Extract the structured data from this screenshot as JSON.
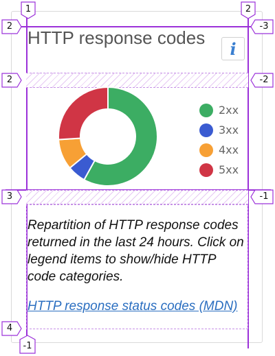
{
  "card": {
    "title": "HTTP response codes",
    "info_icon": "info-icon",
    "description": "Repartition of HTTP response codes returned in the last 24 hours. Click on legend items to show/hide HTTP code categories.",
    "link_label": "HTTP response status codes (MDN)"
  },
  "grid_badges": [
    "1",
    "2",
    "1",
    "-3",
    "2",
    "-2",
    "3",
    "-1",
    "4",
    "-1"
  ],
  "chart_data": {
    "type": "pie",
    "style": "donut",
    "categories": [
      "2xx",
      "3xx",
      "4xx",
      "5xx"
    ],
    "values": [
      58,
      6,
      10,
      26
    ],
    "colors": [
      "#3cad63",
      "#3a5bd1",
      "#f7a035",
      "#d03545"
    ],
    "legend_position": "right"
  }
}
